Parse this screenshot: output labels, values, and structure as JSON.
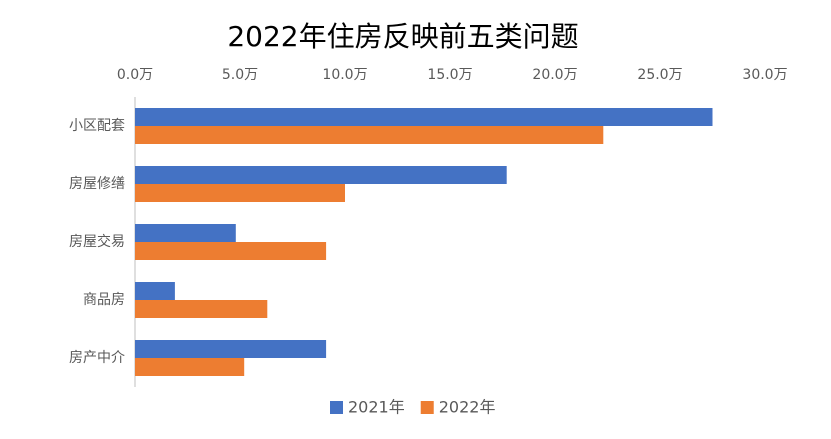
{
  "chart_data": {
    "type": "hbar",
    "title": "2022年住房反映前五类问题",
    "categories": [
      "小区配套",
      "房屋修缮",
      "房屋交易",
      "商品房",
      "房产中介"
    ],
    "series": [
      {
        "name": "2021年",
        "color": "#4472c4",
        "values": [
          27.5,
          17.7,
          4.8,
          1.9,
          9.1
        ]
      },
      {
        "name": "2022年",
        "color": "#ed7d31",
        "values": [
          22.3,
          10.0,
          9.1,
          6.3,
          5.2
        ]
      }
    ],
    "xlim": [
      0,
      30
    ],
    "xticks": [
      {
        "value": 0,
        "label": "0.0万"
      },
      {
        "value": 5,
        "label": "5.0万"
      },
      {
        "value": 10,
        "label": "10.0万"
      },
      {
        "value": 15,
        "label": "15.0万"
      },
      {
        "value": 20,
        "label": "20.0万"
      },
      {
        "value": 25,
        "label": "25.0万"
      },
      {
        "value": 30,
        "label": "30.0万"
      }
    ],
    "grid": false,
    "legend": "bottom"
  }
}
